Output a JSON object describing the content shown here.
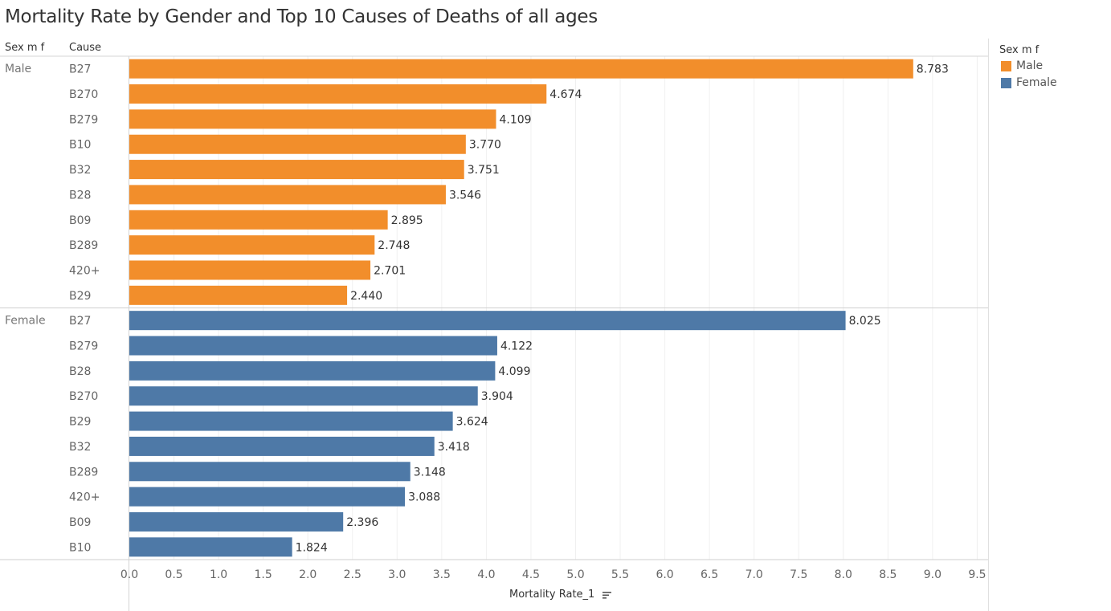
{
  "title": "Mortality Rate by Gender and Top 10 Causes of Deaths of all ages",
  "headers": {
    "sex": "Sex m f",
    "cause": "Cause"
  },
  "legend": {
    "title": "Sex m f",
    "items": [
      {
        "label": "Male",
        "color": "#f28e2b"
      },
      {
        "label": "Female",
        "color": "#4e79a7"
      }
    ]
  },
  "xlabel": "Mortality Rate_1",
  "sort_icon": "sort-descending-icon",
  "chart_data": {
    "type": "bar",
    "orientation": "horizontal",
    "title": "Mortality Rate by Gender and Top 10 Causes of Deaths of all ages",
    "xlabel": "Mortality Rate_1",
    "xlim": [
      0,
      9.7
    ],
    "xticks": [
      "0.0",
      "0.5",
      "1.0",
      "1.5",
      "2.0",
      "2.5",
      "3.0",
      "3.5",
      "4.0",
      "4.5",
      "5.0",
      "5.5",
      "6.0",
      "6.5",
      "7.0",
      "7.5",
      "8.0",
      "8.5",
      "9.0",
      "9.5"
    ],
    "grid": true,
    "legend_position": "top-right",
    "groups": [
      {
        "name": "Male",
        "color": "#f28e2b",
        "categories": [
          "B27",
          "B270",
          "B279",
          "B10",
          "B32",
          "B28",
          "B09",
          "B289",
          "420+",
          "B29"
        ],
        "values": [
          8.783,
          4.674,
          4.109,
          3.77,
          3.751,
          3.546,
          2.895,
          2.748,
          2.701,
          2.44
        ],
        "labels": [
          "8.783",
          "4.674",
          "4.109",
          "3.770",
          "3.751",
          "3.546",
          "2.895",
          "2.748",
          "2.701",
          "2.440"
        ]
      },
      {
        "name": "Female",
        "color": "#4e79a7",
        "categories": [
          "B27",
          "B279",
          "B28",
          "B270",
          "B29",
          "B32",
          "B289",
          "420+",
          "B09",
          "B10"
        ],
        "values": [
          8.025,
          4.122,
          4.099,
          3.904,
          3.624,
          3.418,
          3.148,
          3.088,
          2.396,
          1.824
        ],
        "labels": [
          "8.025",
          "4.122",
          "4.099",
          "3.904",
          "3.624",
          "3.418",
          "3.148",
          "3.088",
          "2.396",
          "1.824"
        ]
      }
    ]
  }
}
